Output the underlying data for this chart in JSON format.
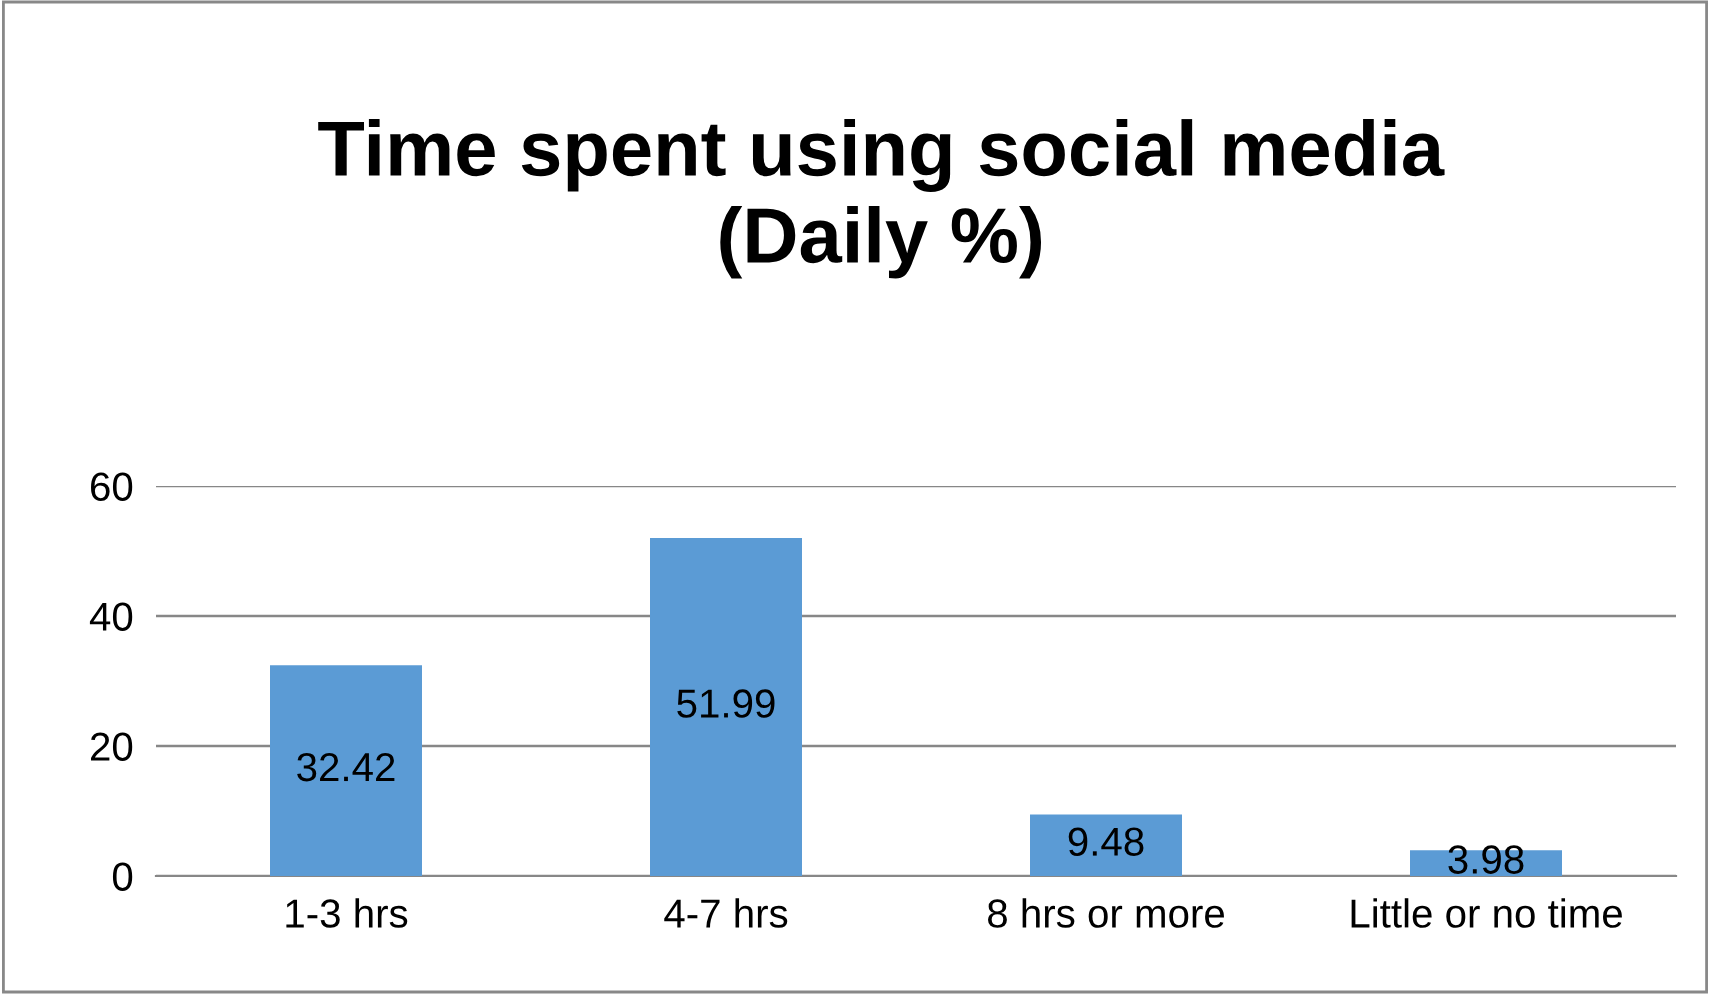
{
  "chart_data": {
    "type": "bar",
    "title": "Time spent using social media\n(Daily %)",
    "categories": [
      "1-3 hrs",
      "4-7 hrs",
      "8 hrs or more",
      "Little or no time"
    ],
    "values": [
      32.42,
      51.99,
      9.48,
      3.98
    ],
    "color": "#5b9bd5",
    "ylim": [
      0,
      60
    ],
    "yticks": [
      0,
      20,
      40,
      60
    ],
    "grid": "y",
    "data_labels": true
  }
}
